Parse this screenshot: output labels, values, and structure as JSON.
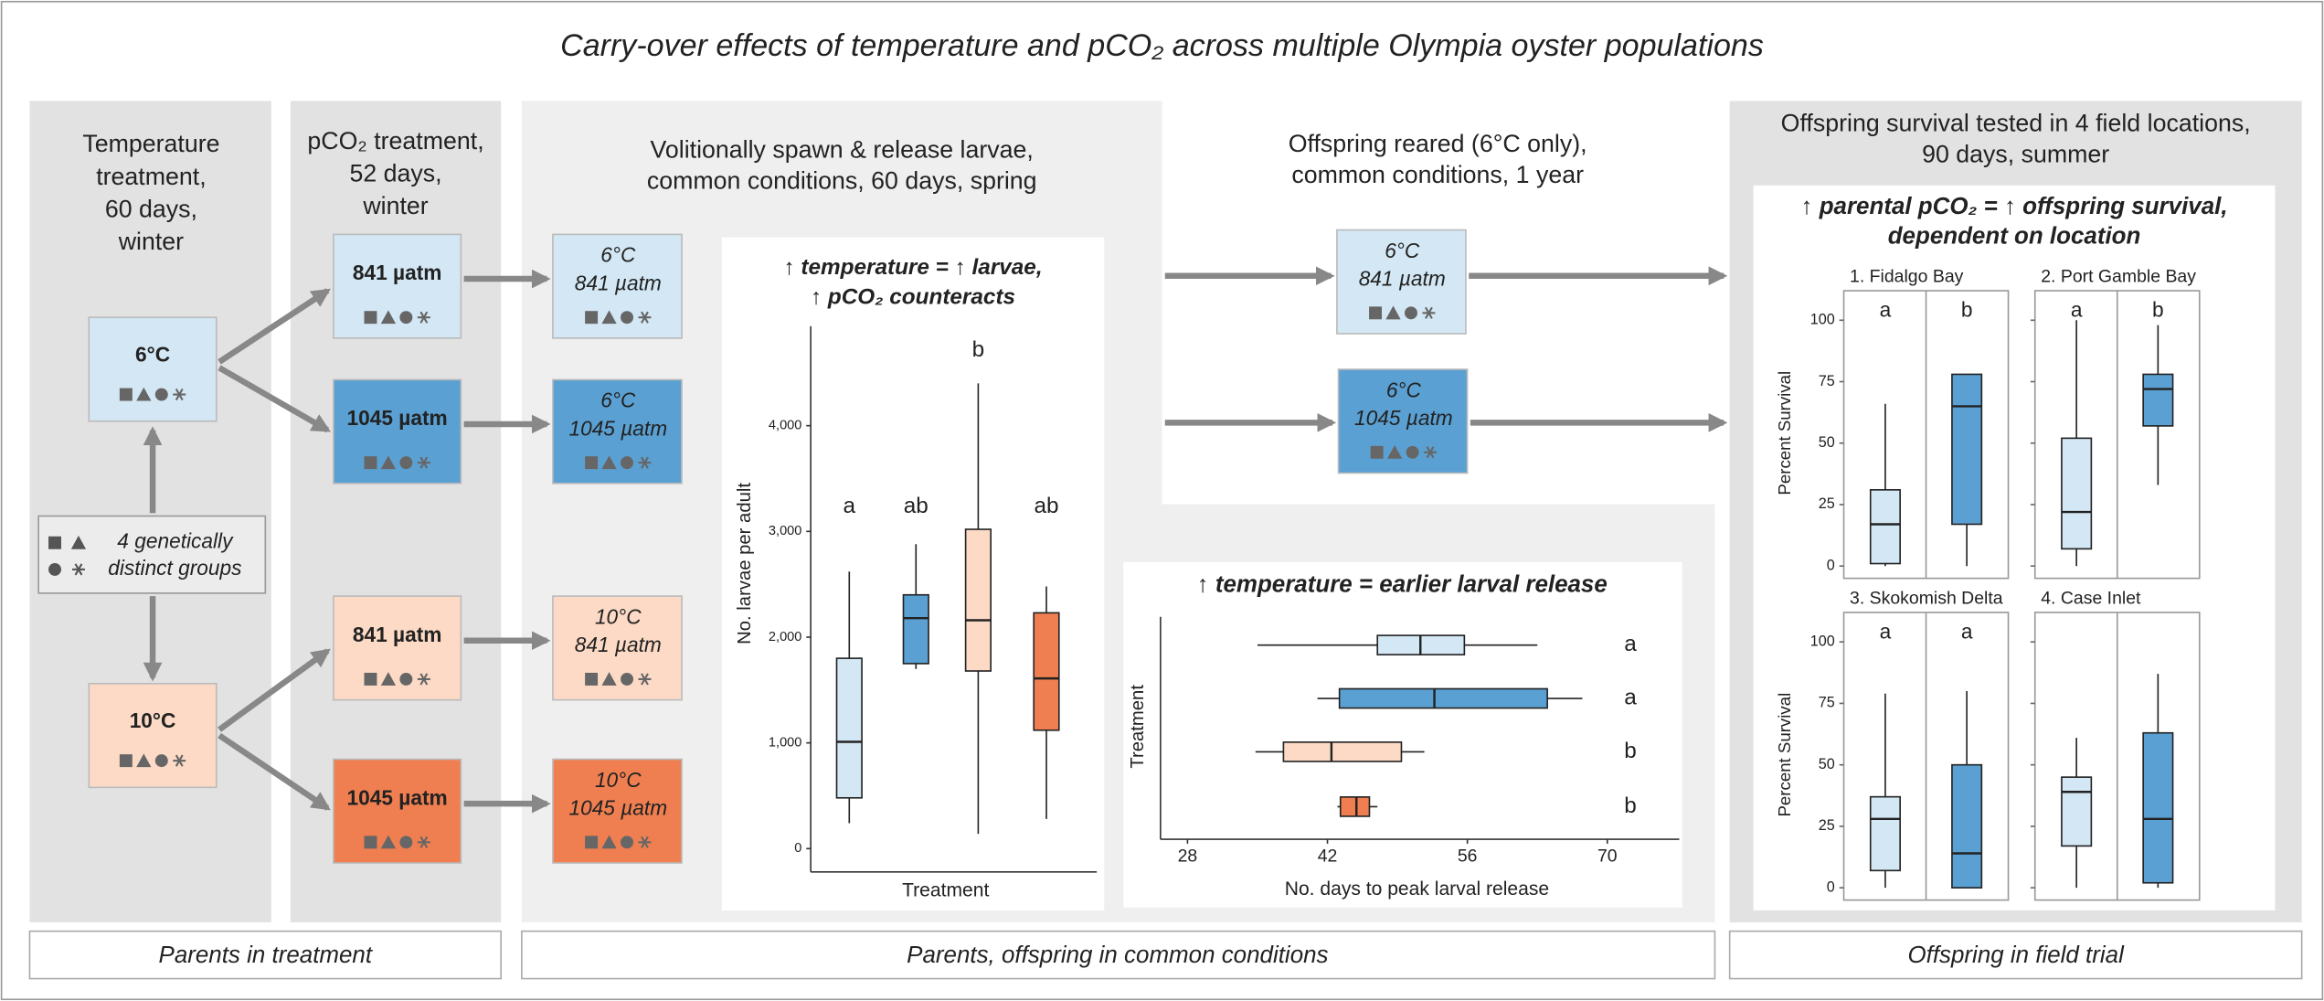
{
  "title": "Carry-over effects of temperature and pCO₂ across multiple Olympia oyster populations",
  "stages": {
    "temperature": [
      "Temperature",
      "treatment,",
      "60 days,",
      "winter"
    ],
    "pco2": [
      "pCO₂ treatment,",
      "52 days,",
      "winter"
    ],
    "spawn": [
      "Volitionally spawn & release larvae,",
      "common conditions, 60 days, spring"
    ],
    "reared": [
      "Offspring reared (6°C only),",
      "common conditions, 1 year"
    ],
    "field": [
      "Offspring survival tested in 4 field locations,",
      "90 days, summer"
    ]
  },
  "treatments": [
    {
      "temp": "6°C",
      "pco2": "841 µatm",
      "color": "#d3e7f4"
    },
    {
      "temp": "6°C",
      "pco2": "1045 µatm",
      "color": "#5ba0d2"
    },
    {
      "temp": "10°C",
      "pco2": "841 µatm",
      "color": "#fcdac6"
    },
    {
      "temp": "10°C",
      "pco2": "1045 µatm",
      "color": "#ef7f51"
    }
  ],
  "groups_label": [
    "4 genetically",
    "distinct groups"
  ],
  "footers": [
    "Parents in treatment",
    "Parents, offspring in common conditions",
    "Offspring in field trial"
  ],
  "larvae_plot": {
    "title": [
      "↑ temperature = ↑ larvae,",
      "↑ pCO₂ counteracts"
    ],
    "ylabel": "No. larvae per adult",
    "xlabel": "Treatment",
    "ylim": [
      -220,
      4940
    ],
    "yticks": [
      0,
      {
        "value": 1000,
        "label": "1,000"
      },
      {
        "value": 2000,
        "label": "2,000"
      },
      {
        "value": 3000,
        "label": "3,000"
      },
      {
        "value": 4000,
        "label": "4,000"
      }
    ],
    "boxes": [
      {
        "low": 240,
        "q1": 480,
        "median": 1010,
        "q3": 1800,
        "high": 2620,
        "letter": "a"
      },
      {
        "low": 1700,
        "q1": 1750,
        "median": 2180,
        "q3": 2400,
        "high": 2880,
        "letter": "ab"
      },
      {
        "low": 140,
        "q1": 1680,
        "median": 2160,
        "q3": 3020,
        "high": 4400,
        "letter": "b"
      },
      {
        "low": 280,
        "q1": 1120,
        "median": 1610,
        "q3": 2230,
        "high": 2480,
        "letter": "ab"
      }
    ]
  },
  "release_plot": {
    "title": "↑ temperature = earlier larval release",
    "ylabel": "Treatment",
    "xlabel": "No. days to peak larval release",
    "xlim": [
      25.3,
      77.2
    ],
    "xticks": [
      28,
      42,
      56,
      70
    ],
    "boxes": [
      {
        "low": 35,
        "q1": 47,
        "median": 51.3,
        "q3": 55.7,
        "high": 63,
        "letter": "a"
      },
      {
        "low": 41,
        "q1": 43.2,
        "median": 52.7,
        "q3": 64,
        "high": 67.5,
        "letter": "a"
      },
      {
        "low": 34.8,
        "q1": 37.6,
        "median": 42.4,
        "q3": 49.4,
        "high": 51.7,
        "letter": "b"
      },
      {
        "low": 43,
        "q1": 43.3,
        "median": 44.9,
        "q3": 46.2,
        "high": 47,
        "letter": "b"
      }
    ]
  },
  "survival_plot": {
    "title": [
      "↑ parental pCO₂ = ↑ offspring survival,",
      "dependent on location"
    ],
    "ylabel": "Percent Survival",
    "ylim": [
      -5,
      112
    ],
    "yticks": [
      0,
      25,
      50,
      75,
      100
    ],
    "sites": [
      {
        "name": "1. Fidalgo Bay",
        "boxes": [
          {
            "low": 0,
            "q1": 1,
            "median": 17,
            "q3": 31,
            "high": 66,
            "letter": "a"
          },
          {
            "low": 0,
            "q1": 17,
            "median": 65,
            "q3": 78,
            "high": 78,
            "letter": "b"
          }
        ]
      },
      {
        "name": "2. Port Gamble Bay",
        "boxes": [
          {
            "low": 0,
            "q1": 7,
            "median": 22,
            "q3": 52,
            "high": 100,
            "letter": "a"
          },
          {
            "low": 33,
            "q1": 57,
            "median": 72,
            "q3": 78,
            "high": 98,
            "letter": "b"
          }
        ]
      },
      {
        "name": "3. Skokomish Delta",
        "boxes": [
          {
            "low": 0,
            "q1": 7,
            "median": 28,
            "q3": 37,
            "high": 79,
            "letter": "a"
          },
          {
            "low": 0,
            "q1": 0,
            "median": 14,
            "q3": 50,
            "high": 80,
            "letter": "a"
          }
        ]
      },
      {
        "name": "4. Case Inlet",
        "boxes": [
          {
            "low": 0,
            "q1": 17,
            "median": 39,
            "q3": 45,
            "high": 61
          },
          {
            "low": 0,
            "q1": 2,
            "median": 28,
            "q3": 63,
            "high": 87
          }
        ]
      }
    ]
  }
}
